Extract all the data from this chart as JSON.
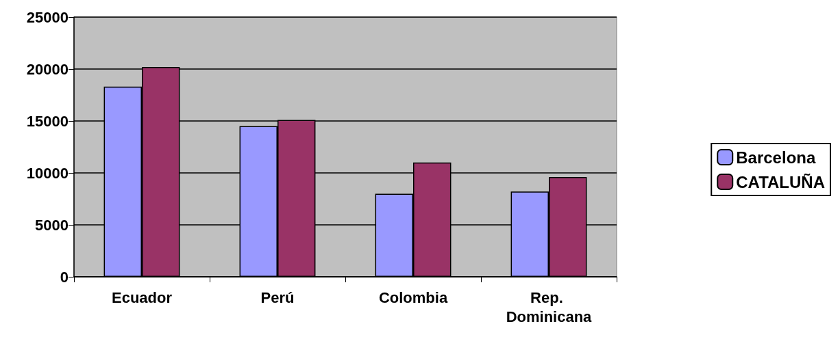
{
  "chart_data": {
    "type": "bar",
    "categories": [
      "Ecuador",
      "Perú",
      "Colombia",
      "Rep. Dominicana"
    ],
    "series": [
      {
        "name": "Barcelona",
        "color": "#9999ff",
        "values": [
          18300,
          14500,
          8000,
          8200
        ]
      },
      {
        "name": "CATALUÑA",
        "color": "#993366",
        "values": [
          20200,
          15100,
          11000,
          9600
        ]
      }
    ],
    "ylim": [
      0,
      25000
    ],
    "yticks": [
      0,
      5000,
      10000,
      15000,
      20000,
      25000
    ],
    "grid": "y",
    "legend": "right"
  }
}
